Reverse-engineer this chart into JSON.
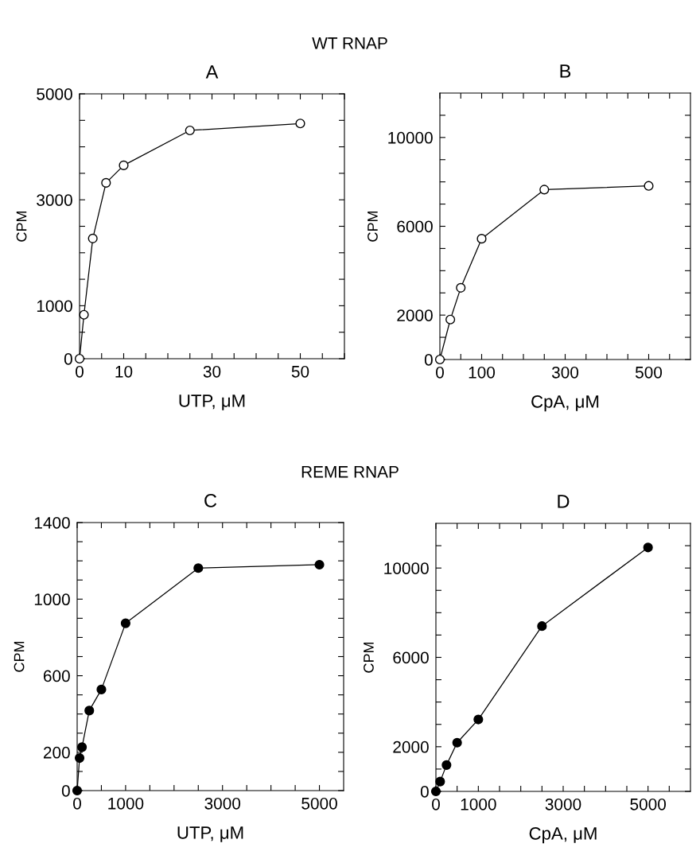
{
  "chart_data": [
    {
      "type": "line",
      "title": "A",
      "annotations": [
        "WT RNAP"
      ],
      "xlabel": "UTP, μM",
      "ylabel": "CPM",
      "marker": "circle",
      "x": [
        0,
        1,
        3,
        6,
        10,
        25,
        50
      ],
      "series": [
        {
          "color": "#000000",
          "colors": [
            "#ffffff",
            "#ffffff",
            "#ffffff",
            "#ffffff",
            "#ffffff",
            "#ffffff",
            "#ffffff"
          ],
          "values": [
            0,
            830,
            2270,
            3320,
            3650,
            4310,
            4440
          ]
        }
      ],
      "xlim": [
        0,
        60
      ],
      "xticks": [
        0,
        {
          "value": 5,
          "label": null
        },
        10,
        {
          "value": 15,
          "label": null
        },
        {
          "value": 20,
          "label": null
        },
        {
          "value": 25,
          "label": null
        },
        30,
        {
          "value": 35,
          "label": null
        },
        {
          "value": 40,
          "label": null
        },
        {
          "value": 45,
          "label": null
        },
        50,
        {
          "value": 55,
          "label": null
        },
        {
          "value": 60,
          "label": null
        }
      ],
      "ylim": [
        0,
        5000
      ],
      "yticks": [
        0,
        {
          "value": 500,
          "label": null
        },
        1000,
        {
          "value": 1500,
          "label": null
        },
        {
          "value": 2000,
          "label": null
        },
        {
          "value": 2500,
          "label": null
        },
        3000,
        {
          "value": 3500,
          "label": null
        },
        {
          "value": 4000,
          "label": null
        },
        {
          "value": 4500,
          "label": null
        },
        5000
      ]
    },
    {
      "type": "line",
      "title": "B",
      "ylabel": "CPM",
      "marker": "circle",
      "x": [
        0,
        25,
        50,
        100,
        250,
        500
      ],
      "series": [
        {
          "color": "#000000",
          "colors": [
            "#ffffff",
            "#ffffff",
            "#ffffff",
            "#ffffff",
            "#ffffff",
            "#ffffff"
          ],
          "values": [
            0,
            1800,
            3230,
            5440,
            7650,
            7820
          ]
        }
      ],
      "xlim": [
        0,
        600
      ],
      "xticks": [
        0,
        {
          "value": 50,
          "label": null
        },
        100,
        {
          "value": 150,
          "label": null
        },
        {
          "value": 200,
          "label": null
        },
        {
          "value": 250,
          "label": null
        },
        300,
        {
          "value": 350,
          "label": null
        },
        {
          "value": 400,
          "label": null
        },
        {
          "value": 450,
          "label": null
        },
        500,
        {
          "value": 550,
          "label": null
        }
      ],
      "ylim": [
        0,
        12000
      ],
      "yticks": [
        0,
        {
          "value": 1000,
          "label": null
        },
        2000,
        {
          "value": 3000,
          "label": null
        },
        {
          "value": 4000,
          "label": null
        },
        {
          "value": 5000,
          "label": null
        },
        6000,
        {
          "value": 7000,
          "label": null
        },
        {
          "value": 8000,
          "label": null
        },
        {
          "value": 9000,
          "label": null
        },
        10000,
        {
          "value": 11000,
          "label": null
        }
      ],
      "xlabel": "CpA, μM"
    },
    {
      "type": "line",
      "title": "C",
      "annotations": [
        "REME RNAP"
      ],
      "xlabel": "UTP, μM",
      "ylabel": "CPM",
      "marker": "circle",
      "x": [
        0,
        50,
        100,
        250,
        500,
        1000,
        2500,
        5000
      ],
      "series": [
        {
          "color": "#000000",
          "values": [
            0,
            170,
            227,
            418,
            528,
            874,
            1162,
            1180
          ]
        }
      ],
      "xlim": [
        0,
        5500
      ],
      "xticks": [
        0,
        {
          "value": 500,
          "label": null
        },
        1000,
        {
          "value": 1500,
          "label": null
        },
        {
          "value": 2000,
          "label": null
        },
        {
          "value": 2500,
          "label": null
        },
        3000,
        {
          "value": 3500,
          "label": null
        },
        {
          "value": 4000,
          "label": null
        },
        {
          "value": 4500,
          "label": null
        },
        5000
      ],
      "ylim": [
        0,
        1400
      ],
      "yticks": [
        0,
        {
          "value": 100,
          "label": null
        },
        200,
        {
          "value": 300,
          "label": null
        },
        {
          "value": 400,
          "label": null
        },
        {
          "value": 500,
          "label": null
        },
        600,
        {
          "value": 700,
          "label": null
        },
        {
          "value": 800,
          "label": null
        },
        {
          "value": 900,
          "label": null
        },
        1000,
        {
          "value": 1100,
          "label": null
        },
        {
          "value": 1200,
          "label": null
        },
        {
          "value": 1300,
          "label": null
        },
        1400
      ]
    },
    {
      "type": "line",
      "title": "D",
      "xlabel": "CpA, μM",
      "ylabel": "CPM",
      "marker": "circle",
      "x": [
        0,
        100,
        250,
        500,
        1000,
        2500,
        5000
      ],
      "series": [
        {
          "color": "#000000",
          "values": [
            0,
            440,
            1180,
            2180,
            3220,
            7400,
            10920
          ]
        }
      ],
      "xlim": [
        0,
        6000
      ],
      "xticks": [
        0,
        {
          "value": 500,
          "label": null
        },
        1000,
        {
          "value": 1500,
          "label": null
        },
        {
          "value": 2000,
          "label": null
        },
        {
          "value": 2500,
          "label": null
        },
        3000,
        {
          "value": 3500,
          "label": null
        },
        {
          "value": 4000,
          "label": null
        },
        {
          "value": 4500,
          "label": null
        },
        5000,
        {
          "value": 5500,
          "label": null
        }
      ],
      "ylim": [
        0,
        12000
      ],
      "yticks": [
        0,
        {
          "value": 1000,
          "label": null
        },
        2000,
        {
          "value": 3000,
          "label": null
        },
        {
          "value": 4000,
          "label": null
        },
        {
          "value": 5000,
          "label": null
        },
        6000,
        {
          "value": 7000,
          "label": null
        },
        {
          "value": 8000,
          "label": null
        },
        {
          "value": 9000,
          "label": null
        },
        10000,
        {
          "value": 11000,
          "label": null
        }
      ]
    }
  ]
}
